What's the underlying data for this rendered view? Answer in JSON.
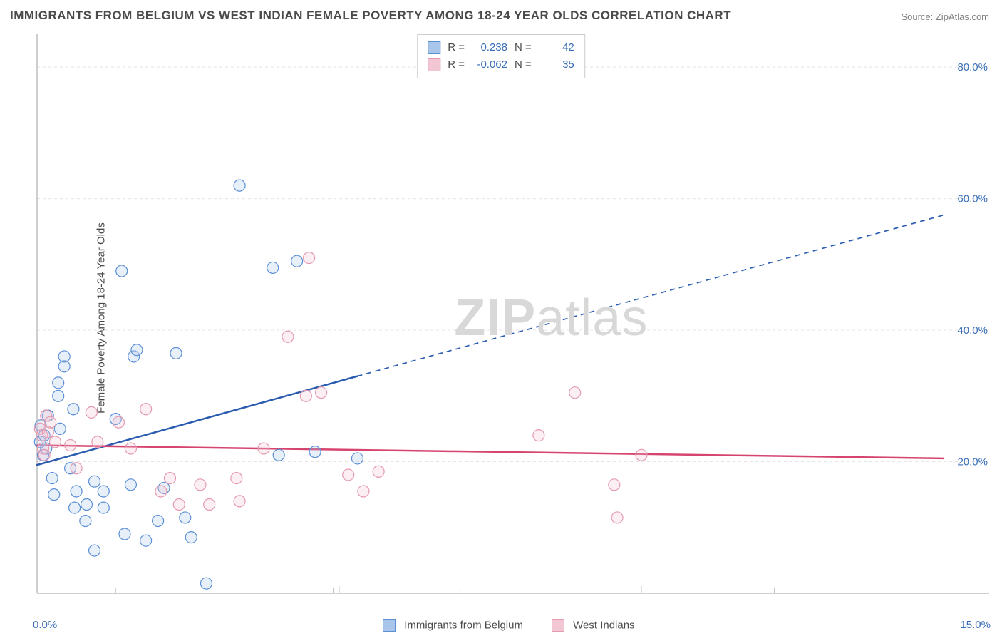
{
  "title": "IMMIGRANTS FROM BELGIUM VS WEST INDIAN FEMALE POVERTY AMONG 18-24 YEAR OLDS CORRELATION CHART",
  "source": "Source: ZipAtlas.com",
  "watermark": {
    "bold": "ZIP",
    "rest": "atlas"
  },
  "y_axis_label": "Female Poverty Among 18-24 Year Olds",
  "chart": {
    "type": "scatter-correlation",
    "background_color": "#ffffff",
    "grid_color": "#e4e4e4",
    "grid_dash": "4,4",
    "axis_line_color": "#bfbfbf",
    "tick_label_color": "#3a6fb7",
    "text_color": "#4a4a4a",
    "title_fontsize": 17,
    "label_fontsize": 15,
    "tick_fontsize": 15,
    "xlim": [
      0,
      15
    ],
    "ylim": [
      0,
      85
    ],
    "x_ticks": [
      0,
      5,
      10,
      15
    ],
    "x_tick_labels_shown": {
      "left": "0.0%",
      "right": "15.0%"
    },
    "y_ticks": [
      20,
      40,
      60,
      80
    ],
    "y_tick_labels": [
      "20.0%",
      "40.0%",
      "60.0%",
      "80.0%"
    ],
    "marker_radius": 8,
    "marker_stroke_width": 1.2,
    "marker_fill_opacity": 0.28,
    "trend_line_width": 2.5,
    "trend_dash_pattern": "7,6"
  },
  "series": [
    {
      "name": "Immigrants from Belgium",
      "color_stroke": "#5b8fd6",
      "color_fill": "#a9c6ea",
      "trend_color": "#2a5db0",
      "R": "0.238",
      "N": "42",
      "trend": {
        "x1": 0,
        "y1": 19.5,
        "x2_solid": 5.3,
        "y2_solid": 33.0,
        "x2_dash": 15,
        "y2_dash": 57.5
      },
      "points": [
        [
          0.05,
          23.0
        ],
        [
          0.06,
          25.5
        ],
        [
          0.1,
          21.0
        ],
        [
          0.12,
          24.0
        ],
        [
          0.15,
          22.0
        ],
        [
          0.18,
          27.0
        ],
        [
          0.25,
          17.5
        ],
        [
          0.28,
          15.0
        ],
        [
          0.35,
          30.0
        ],
        [
          0.35,
          32.0
        ],
        [
          0.38,
          25.0
        ],
        [
          0.45,
          34.5
        ],
        [
          0.45,
          36.0
        ],
        [
          0.55,
          19.0
        ],
        [
          0.6,
          28.0
        ],
        [
          0.62,
          13.0
        ],
        [
          0.65,
          15.5
        ],
        [
          0.8,
          11.0
        ],
        [
          0.82,
          13.5
        ],
        [
          0.95,
          17.0
        ],
        [
          0.95,
          6.5
        ],
        [
          1.1,
          15.5
        ],
        [
          1.1,
          13.0
        ],
        [
          1.3,
          26.5
        ],
        [
          1.4,
          49.0
        ],
        [
          1.45,
          9.0
        ],
        [
          1.55,
          16.5
        ],
        [
          1.6,
          36.0
        ],
        [
          1.65,
          37.0
        ],
        [
          1.8,
          8.0
        ],
        [
          2.0,
          11.0
        ],
        [
          2.1,
          16.0
        ],
        [
          2.3,
          36.5
        ],
        [
          2.45,
          11.5
        ],
        [
          2.55,
          8.5
        ],
        [
          2.8,
          1.5
        ],
        [
          3.35,
          62.0
        ],
        [
          3.9,
          49.5
        ],
        [
          4.0,
          21.0
        ],
        [
          4.3,
          50.5
        ],
        [
          4.6,
          21.5
        ],
        [
          5.3,
          20.5
        ]
      ]
    },
    {
      "name": "West Indians",
      "color_stroke": "#e49ab0",
      "color_fill": "#f3c6d3",
      "trend_color": "#d6456f",
      "R": "-0.062",
      "N": "35",
      "trend": {
        "x1": 0,
        "y1": 22.5,
        "x2_solid": 15,
        "y2_solid": 20.5,
        "x2_dash": 15,
        "y2_dash": 20.5
      },
      "points": [
        [
          0.05,
          25.0
        ],
        [
          0.08,
          24.0
        ],
        [
          0.1,
          22.0
        ],
        [
          0.12,
          21.0
        ],
        [
          0.15,
          27.0
        ],
        [
          0.18,
          24.5
        ],
        [
          0.22,
          26.0
        ],
        [
          0.3,
          23.0
        ],
        [
          0.55,
          22.5
        ],
        [
          0.65,
          19.0
        ],
        [
          0.9,
          27.5
        ],
        [
          1.0,
          23.0
        ],
        [
          1.35,
          26.0
        ],
        [
          1.55,
          22.0
        ],
        [
          1.8,
          28.0
        ],
        [
          2.05,
          15.5
        ],
        [
          2.2,
          17.5
        ],
        [
          2.35,
          13.5
        ],
        [
          2.7,
          16.5
        ],
        [
          2.85,
          13.5
        ],
        [
          3.3,
          17.5
        ],
        [
          3.35,
          14.0
        ],
        [
          3.75,
          22.0
        ],
        [
          4.15,
          39.0
        ],
        [
          4.45,
          30.0
        ],
        [
          4.5,
          51.0
        ],
        [
          4.7,
          30.5
        ],
        [
          5.15,
          18.0
        ],
        [
          5.4,
          15.5
        ],
        [
          5.65,
          18.5
        ],
        [
          8.3,
          24.0
        ],
        [
          8.9,
          30.5
        ],
        [
          9.55,
          16.5
        ],
        [
          9.6,
          11.5
        ],
        [
          10.0,
          21.0
        ]
      ]
    }
  ],
  "stats_box": {
    "r_label": "R =",
    "n_label": "N ="
  },
  "bottom_legend": {
    "items": [
      {
        "label": "Immigrants from Belgium",
        "series_idx": 0
      },
      {
        "label": "West Indians",
        "series_idx": 1
      }
    ]
  }
}
